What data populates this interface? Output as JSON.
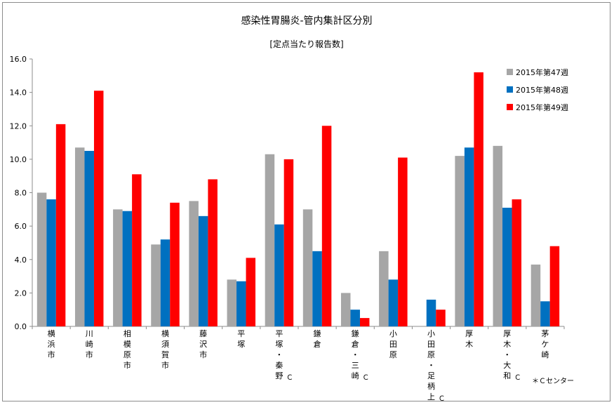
{
  "chart_data": {
    "type": "bar",
    "title": "感染性胃腸炎-管内集計区分別",
    "subtitle": "[定点当たり報告数]",
    "xlabel": "",
    "ylabel": "",
    "ylim": [
      0,
      16
    ],
    "yticks": [
      "0.0",
      "2.0",
      "4.0",
      "6.0",
      "8.0",
      "10.0",
      "12.0",
      "14.0",
      "16.0"
    ],
    "grid": false,
    "legend_position": "top-right",
    "categories": [
      "横浜市",
      "川崎市",
      "相模原市",
      "横須賀市",
      "藤沢市",
      "平塚",
      "平塚・秦野Ｃ",
      "鎌倉",
      "鎌倉・三崎Ｃ",
      "小田原",
      "小田原・足柄上Ｃ",
      "厚木",
      "厚木・大和Ｃ",
      "茅ケ崎"
    ],
    "series": [
      {
        "name": "2015年第47週",
        "color": "#a6a6a6",
        "values": [
          8.0,
          10.7,
          7.0,
          4.9,
          7.5,
          2.8,
          10.3,
          7.0,
          2.0,
          4.5,
          0.0,
          10.2,
          10.8,
          3.7
        ]
      },
      {
        "name": "2015年第48週",
        "color": "#0070c0",
        "values": [
          7.6,
          10.5,
          6.9,
          5.2,
          6.6,
          2.7,
          6.1,
          4.5,
          1.0,
          2.8,
          1.6,
          10.7,
          7.1,
          1.5
        ]
      },
      {
        "name": "2015年第49週",
        "color": "#ff0000",
        "values": [
          12.1,
          14.1,
          9.1,
          7.4,
          8.8,
          4.1,
          10.0,
          12.0,
          0.5,
          10.1,
          1.0,
          15.2,
          7.6,
          4.8
        ]
      }
    ],
    "note": "＊Ｃセンター"
  }
}
